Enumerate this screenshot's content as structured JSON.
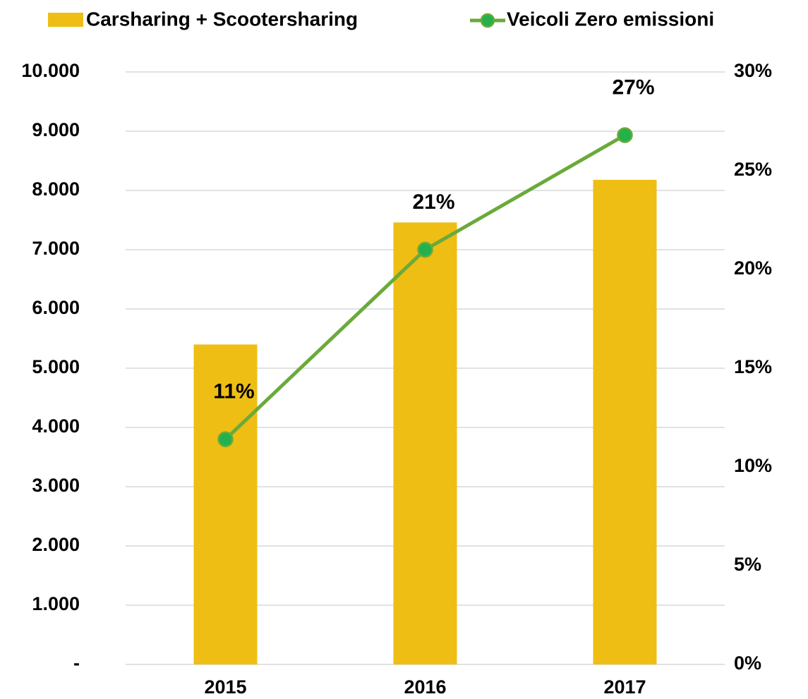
{
  "chart_data": {
    "type": "bar-line",
    "categories": [
      "2015",
      "2016",
      "2017"
    ],
    "series": [
      {
        "name": "Carsharing + Scootersharing",
        "color": "#EEBE14",
        "type": "bar",
        "values": [
          5400,
          7460,
          8180
        ]
      },
      {
        "name": "Veicoli Zero emissioni",
        "color": "#6AAA3A",
        "marker_color": "#22B14C",
        "type": "line",
        "axis": "y2",
        "values": [
          11.4,
          21,
          26.8
        ],
        "value_labels": [
          "11%",
          "21%",
          "27%"
        ]
      }
    ],
    "ylim": [
      0,
      10000
    ],
    "yticks": [
      {
        "value": 0,
        "label": "-"
      },
      {
        "value": 1000,
        "label": "1.000"
      },
      {
        "value": 2000,
        "label": "2.000"
      },
      {
        "value": 3000,
        "label": "3.000"
      },
      {
        "value": 4000,
        "label": "4.000"
      },
      {
        "value": 5000,
        "label": "5.000"
      },
      {
        "value": 6000,
        "label": "6.000"
      },
      {
        "value": 7000,
        "label": "7.000"
      },
      {
        "value": 8000,
        "label": "8.000"
      },
      {
        "value": 9000,
        "label": "9.000"
      },
      {
        "value": 10000,
        "label": "10.000"
      }
    ],
    "y2lim": [
      0,
      30
    ],
    "y2ticks": [
      {
        "value": 0,
        "label": "0%"
      },
      {
        "value": 5,
        "label": "5%"
      },
      {
        "value": 10,
        "label": "10%"
      },
      {
        "value": 15,
        "label": "15%"
      },
      {
        "value": 20,
        "label": "20%"
      },
      {
        "value": 25,
        "label": "25%"
      },
      {
        "value": 30,
        "label": "30%"
      }
    ],
    "grid": true,
    "legend": "top"
  }
}
